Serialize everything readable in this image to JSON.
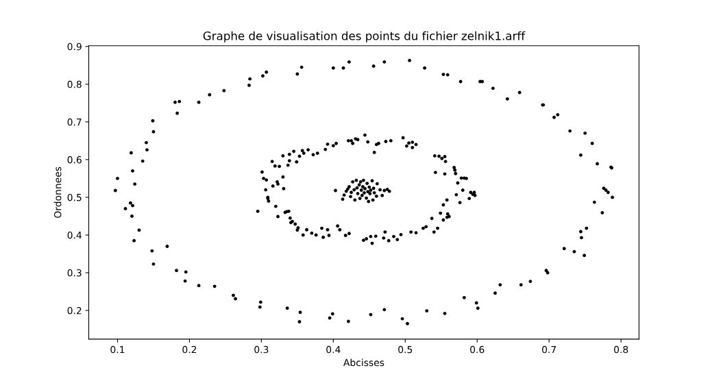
{
  "chart_data": {
    "type": "scatter",
    "title": "Graphe de visualisation des points du fichier zelnik1.arff",
    "xlabel": "Abcisses",
    "ylabel": "Ordonnees",
    "xlim": [
      0.06,
      0.825
    ],
    "ylim": [
      0.124,
      0.902
    ],
    "xticks": [
      0.1,
      0.2,
      0.3,
      0.4,
      0.5,
      0.6,
      0.7,
      0.8
    ],
    "yticks": [
      0.2,
      0.3,
      0.4,
      0.5,
      0.6,
      0.7,
      0.8,
      0.9
    ],
    "grid": false,
    "marker": "circle",
    "series": [
      {
        "color": "#000000",
        "x": [
          0.097,
          0.1,
          0.111,
          0.118,
          0.12,
          0.121,
          0.123,
          0.124,
          0.121,
          0.119,
          0.13,
          0.135,
          0.14,
          0.141,
          0.149,
          0.15,
          0.148,
          0.15,
          0.169,
          0.18,
          0.183,
          0.186,
          0.182,
          0.195,
          0.194,
          0.213,
          0.213,
          0.228,
          0.235,
          0.248,
          0.261,
          0.264,
          0.283,
          0.284,
          0.298,
          0.299,
          0.302,
          0.307,
          0.336,
          0.35,
          0.356,
          0.354,
          0.353,
          0.395,
          0.399,
          0.4,
          0.414,
          0.422,
          0.421,
          0.452,
          0.456,
          0.471,
          0.471,
          0.496,
          0.503,
          0.506,
          0.527,
          0.53,
          0.553,
          0.559,
          0.555,
          0.577,
          0.582,
          0.599,
          0.601,
          0.604,
          0.607,
          0.622,
          0.625,
          0.632,
          0.642,
          0.659,
          0.661,
          0.674,
          0.691,
          0.692,
          0.696,
          0.698,
          0.707,
          0.712,
          0.721,
          0.729,
          0.735,
          0.744,
          0.744,
          0.745,
          0.749,
          0.75,
          0.752,
          0.76,
          0.763,
          0.767,
          0.774,
          0.776,
          0.779,
          0.782,
          0.786,
          0.787,
          0.788,
          0.295,
          0.301,
          0.303,
          0.306,
          0.307,
          0.309,
          0.31,
          0.309,
          0.315,
          0.316,
          0.319,
          0.32,
          0.322,
          0.323,
          0.323,
          0.325,
          0.33,
          0.33,
          0.331,
          0.333,
          0.335,
          0.338,
          0.337,
          0.339,
          0.339,
          0.34,
          0.341,
          0.343,
          0.345,
          0.347,
          0.349,
          0.35,
          0.351,
          0.353,
          0.357,
          0.358,
          0.359,
          0.365,
          0.363,
          0.37,
          0.372,
          0.376,
          0.378,
          0.384,
          0.386,
          0.389,
          0.392,
          0.392,
          0.394,
          0.4,
          0.404,
          0.406,
          0.409,
          0.417,
          0.421,
          0.422,
          0.425,
          0.427,
          0.431,
          0.434,
          0.442,
          0.444,
          0.446,
          0.448,
          0.452,
          0.454,
          0.457,
          0.459,
          0.46,
          0.463,
          0.47,
          0.472,
          0.473,
          0.477,
          0.48,
          0.484,
          0.489,
          0.494,
          0.497,
          0.502,
          0.505,
          0.508,
          0.51,
          0.51,
          0.515,
          0.515,
          0.525,
          0.529,
          0.537,
          0.54,
          0.541,
          0.542,
          0.545,
          0.547,
          0.549,
          0.551,
          0.553,
          0.553,
          0.555,
          0.555,
          0.556,
          0.558,
          0.558,
          0.559,
          0.561,
          0.568,
          0.569,
          0.57,
          0.571,
          0.573,
          0.576,
          0.578,
          0.58,
          0.582,
          0.585,
          0.589,
          0.591,
          0.594,
          0.596,
          0.597,
          0.403,
          0.413,
          0.415,
          0.418,
          0.42,
          0.422,
          0.424,
          0.425,
          0.427,
          0.429,
          0.43,
          0.432,
          0.433,
          0.434,
          0.436,
          0.437,
          0.438,
          0.439,
          0.44,
          0.441,
          0.442,
          0.443,
          0.444,
          0.446,
          0.447,
          0.448,
          0.449,
          0.45,
          0.451,
          0.452,
          0.454,
          0.455,
          0.456,
          0.457,
          0.46,
          0.461,
          0.465,
          0.468,
          0.471,
          0.475,
          0.478
        ],
        "values": [
          0.518,
          0.55,
          0.47,
          0.485,
          0.45,
          0.478,
          0.385,
          0.535,
          0.57,
          0.618,
          0.413,
          0.596,
          0.645,
          0.626,
          0.703,
          0.674,
          0.358,
          0.323,
          0.37,
          0.752,
          0.723,
          0.754,
          0.306,
          0.302,
          0.278,
          0.266,
          0.752,
          0.772,
          0.264,
          0.783,
          0.24,
          0.231,
          0.797,
          0.814,
          0.209,
          0.222,
          0.822,
          0.832,
          0.206,
          0.827,
          0.845,
          0.195,
          0.17,
          0.18,
          0.191,
          0.843,
          0.843,
          0.859,
          0.171,
          0.189,
          0.848,
          0.859,
          0.202,
          0.178,
          0.165,
          0.863,
          0.843,
          0.199,
          0.826,
          0.825,
          0.192,
          0.807,
          0.234,
          0.22,
          0.206,
          0.807,
          0.807,
          0.789,
          0.246,
          0.268,
          0.761,
          0.778,
          0.268,
          0.277,
          0.745,
          0.745,
          0.306,
          0.3,
          0.712,
          0.719,
          0.364,
          0.676,
          0.356,
          0.612,
          0.409,
          0.393,
          0.346,
          0.67,
          0.418,
          0.643,
          0.487,
          0.589,
          0.459,
          0.524,
          0.519,
          0.513,
          0.58,
          0.578,
          0.5,
          0.463,
          0.567,
          0.55,
          0.52,
          0.546,
          0.5,
          0.49,
          0.497,
          0.595,
          0.53,
          0.583,
          0.476,
          0.541,
          0.449,
          0.535,
          0.582,
          0.61,
          0.554,
          0.523,
          0.46,
          0.462,
          0.463,
          0.585,
          0.614,
          0.597,
          0.445,
          0.433,
          0.436,
          0.622,
          0.429,
          0.594,
          0.413,
          0.419,
          0.609,
          0.624,
          0.4,
          0.617,
          0.626,
          0.414,
          0.405,
          0.613,
          0.4,
          0.617,
          0.418,
          0.394,
          0.627,
          0.414,
          0.641,
          0.399,
          0.637,
          0.643,
          0.424,
          0.414,
          0.399,
          0.65,
          0.404,
          0.65,
          0.643,
          0.655,
          0.653,
          0.386,
          0.665,
          0.39,
          0.647,
          0.396,
          0.378,
          0.619,
          0.397,
          0.64,
          0.643,
          0.392,
          0.408,
          0.648,
          0.385,
          0.65,
          0.396,
          0.388,
          0.401,
          0.658,
          0.636,
          0.644,
          0.408,
          0.646,
          0.632,
          0.64,
          0.406,
          0.418,
          0.422,
          0.444,
          0.408,
          0.61,
          0.566,
          0.418,
          0.609,
          0.458,
          0.603,
          0.48,
          0.44,
          0.608,
          0.562,
          0.595,
          0.447,
          0.493,
          0.456,
          0.449,
          0.579,
          0.572,
          0.563,
          0.507,
          0.538,
          0.486,
          0.551,
          0.519,
          0.551,
          0.55,
          0.497,
          0.513,
          0.508,
          0.513,
          0.505,
          0.518,
          0.495,
          0.506,
          0.516,
          0.522,
          0.528,
          0.502,
          0.513,
          0.541,
          0.52,
          0.493,
          0.545,
          0.525,
          0.51,
          0.533,
          0.497,
          0.541,
          0.519,
          0.505,
          0.528,
          0.545,
          0.512,
          0.523,
          0.498,
          0.537,
          0.515,
          0.489,
          0.527,
          0.51,
          0.519,
          0.544,
          0.493,
          0.524,
          0.512,
          0.503,
          0.536,
          0.52,
          0.505,
          0.518,
          0.521,
          0.516
        ]
      }
    ]
  }
}
